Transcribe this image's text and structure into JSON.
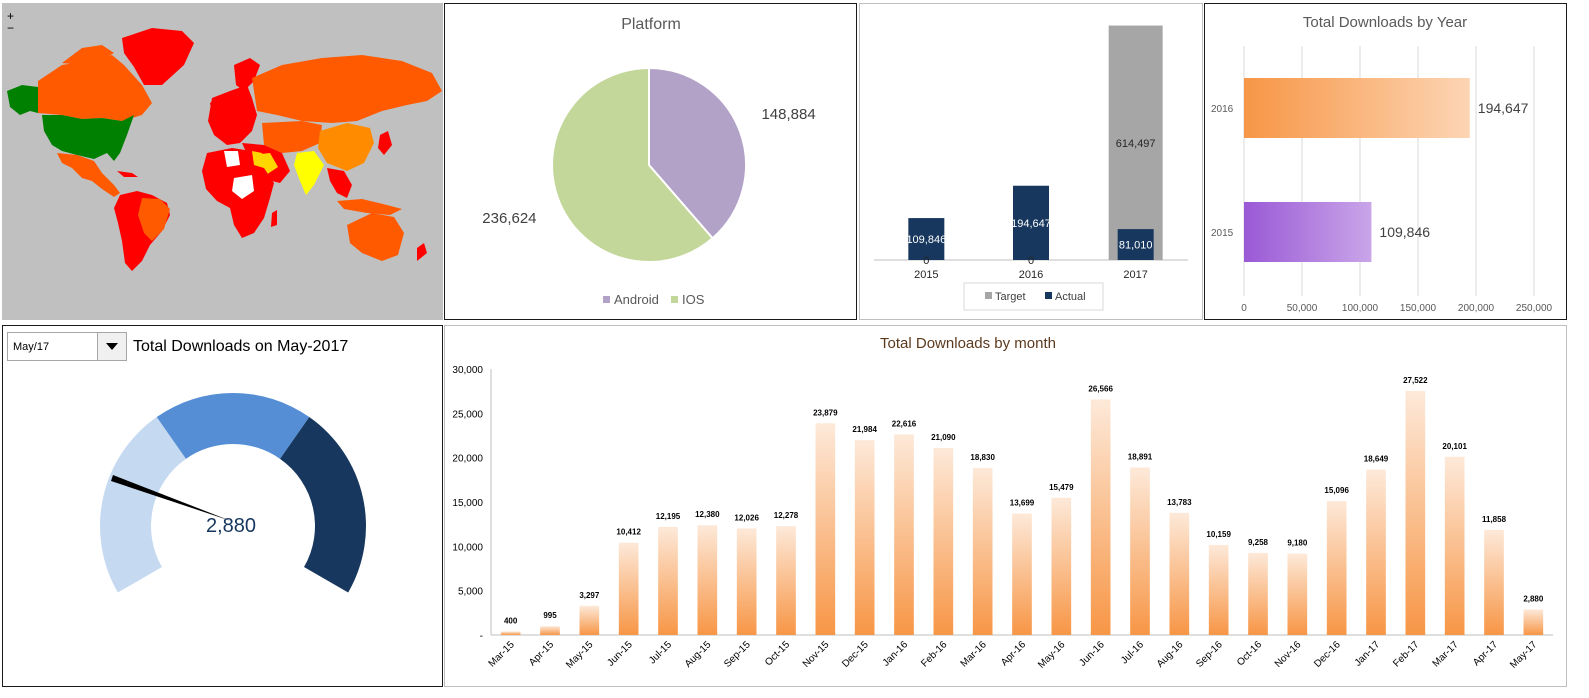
{
  "map": {
    "zoom_in": "+",
    "zoom_out": "−",
    "colors": {
      "ocean": "#c0c0c0",
      "low": "#ff0000",
      "mid": "#ff5a00",
      "mid2": "#ff8c00",
      "high": "#ffd700",
      "highest": "#ffff00",
      "top": "#008000",
      "none": "#ffffff"
    }
  },
  "gauge": {
    "selected": "May/17",
    "title": "Total Downloads on May-2017",
    "value_label": "2,880",
    "colors": {
      "light": "#c5d9f1",
      "mid": "#558ed5",
      "dark": "#17375e",
      "needle": "#000000"
    }
  },
  "chart_data": [
    {
      "id": "platform",
      "type": "pie",
      "title": "Platform",
      "labels": [
        "Android",
        "IOS"
      ],
      "values": [
        148884,
        236624
      ],
      "value_labels": [
        "148,884",
        "236,624"
      ],
      "colors": [
        "#b3a2c7",
        "#c4d79b"
      ],
      "legend": "bottom"
    },
    {
      "id": "target-actual",
      "type": "bar",
      "categories": [
        "2015",
        "2016",
        "2017"
      ],
      "series": [
        {
          "name": "Target",
          "values": [
            0,
            0,
            614497
          ],
          "labels": [
            "0",
            "0",
            "614,497"
          ],
          "color": "#a6a6a6"
        },
        {
          "name": "Actual",
          "values": [
            109846,
            194647,
            81010
          ],
          "labels": [
            "109,846",
            "194,647",
            "81,010"
          ],
          "color": "#17375e"
        }
      ],
      "legend": "bottom",
      "ylim": [
        0,
        650000
      ]
    },
    {
      "id": "year",
      "type": "bar",
      "orientation": "horizontal",
      "title": "Total Downloads by Year",
      "categories": [
        "2016",
        "2015"
      ],
      "values": [
        194647,
        109846
      ],
      "value_labels": [
        "194,647",
        "109,846"
      ],
      "xlim": [
        0,
        250000
      ],
      "ticks": [
        "0",
        "50,000",
        "100,000",
        "150,000",
        "200,000",
        "250,000"
      ],
      "tick_values": [
        0,
        50000,
        100000,
        150000,
        200000,
        250000
      ],
      "colors": [
        [
          "#f79646",
          "#fcd5b4"
        ],
        [
          "#9a59d6",
          "#c9a5e8"
        ]
      ],
      "grid": true
    },
    {
      "id": "month",
      "type": "bar",
      "title": "Total Downloads by month",
      "categories": [
        "Mar-15",
        "Apr-15",
        "May-15",
        "Jun-15",
        "Jul-15",
        "Aug-15",
        "Sep-15",
        "Oct-15",
        "Nov-15",
        "Dec-15",
        "Jan-16",
        "Feb-16",
        "Mar-16",
        "Apr-16",
        "May-16",
        "Jun-16",
        "Jul-16",
        "Aug-16",
        "Sep-16",
        "Oct-16",
        "Nov-16",
        "Dec-16",
        "Jan-17",
        "Feb-17",
        "Mar-17",
        "Apr-17",
        "May-17"
      ],
      "values": [
        400,
        995,
        3297,
        10412,
        12195,
        12380,
        12026,
        12278,
        23879,
        21984,
        22616,
        21090,
        18830,
        13699,
        15479,
        26566,
        18891,
        13783,
        10159,
        9258,
        9180,
        15096,
        18649,
        27522,
        20101,
        11858,
        2880
      ],
      "value_labels": [
        "400",
        "995",
        "3,297",
        "10,412",
        "12,195",
        "12,380",
        "12,026",
        "12,278",
        "23,879",
        "21,984",
        "22,616",
        "21,090",
        "18,830",
        "13,699",
        "15,479",
        "26,566",
        "18,891",
        "13,783",
        "10,159",
        "9,258",
        "9,180",
        "15,096",
        "18,649",
        "27,522",
        "20,101",
        "11,858",
        "2,880"
      ],
      "ylim": [
        0,
        30000
      ],
      "ticks": [
        "-",
        "5,000",
        "10,000",
        "15,000",
        "20,000",
        "25,000",
        "30,000"
      ],
      "tick_values": [
        0,
        5000,
        10000,
        15000,
        20000,
        25000,
        30000
      ],
      "colors": [
        "#f79646",
        "#fde9d9"
      ]
    }
  ]
}
